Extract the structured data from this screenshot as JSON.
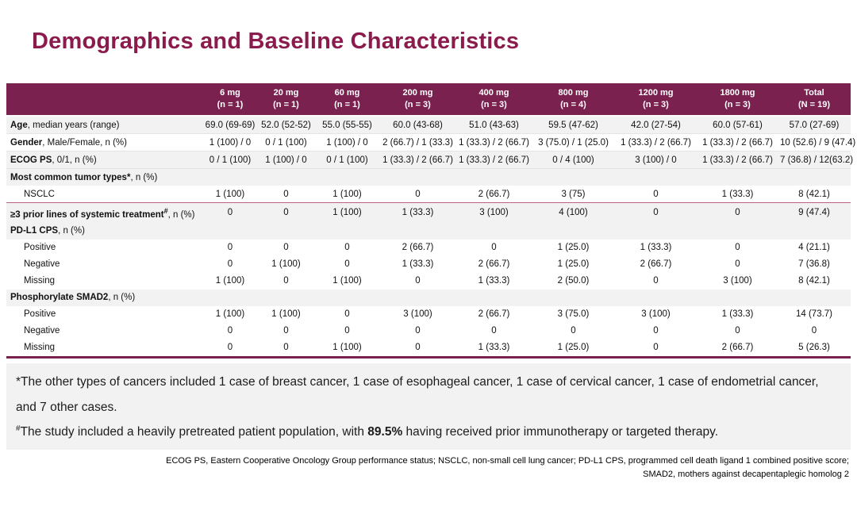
{
  "title": "Demographics and Baseline Characteristics",
  "colors": {
    "accent_maroon": "#7B2150",
    "title_maroon": "#8A1B4C",
    "row_shade": "#F2F2F2",
    "separator_pink": "#BE6186",
    "header_text": "#FFFFFF"
  },
  "table": {
    "columns": [
      {
        "dose": "6 mg",
        "n": "(n = 1)"
      },
      {
        "dose": "20 mg",
        "n": "(n = 1)"
      },
      {
        "dose": "60 mg",
        "n": "(n = 1)"
      },
      {
        "dose": "200 mg",
        "n": "(n = 3)"
      },
      {
        "dose": "400 mg",
        "n": "(n = 3)"
      },
      {
        "dose": "800 mg",
        "n": "(n = 4)"
      },
      {
        "dose": "1200 mg",
        "n": "(n = 3)"
      },
      {
        "dose": "1800 mg",
        "n": "(n = 3)"
      },
      {
        "dose": "Total",
        "n": "(N = 19)"
      }
    ],
    "rows": [
      {
        "type": "data",
        "shade": true,
        "rule": true,
        "label": [
          {
            "t": "Age",
            "b": true
          },
          {
            "t": ", median years (range)"
          }
        ],
        "values": [
          "69.0 (69-69)",
          "52.0 (52-52)",
          "55.0 (55-55)",
          "60.0 (43-68)",
          "51.0 (43-63)",
          "59.5 (47-62)",
          "42.0 (27-54)",
          "60.0 (57-61)",
          "57.0 (27-69)"
        ]
      },
      {
        "type": "data",
        "shade": false,
        "rule": true,
        "label": [
          {
            "t": "Gender",
            "b": true
          },
          {
            "t": ", Male/Female, n (%)"
          }
        ],
        "values": [
          "1 (100) / 0",
          "0 / 1 (100)",
          "1 (100) / 0",
          "2 (66.7) / 1 (33.3)",
          "1 (33.3) / 2 (66.7)",
          "3 (75.0) / 1 (25.0)",
          "1 (33.3) / 2 (66.7)",
          "1 (33.3) / 2 (66.7)",
          "10 (52.6) / 9 (47.4)"
        ]
      },
      {
        "type": "data",
        "shade": true,
        "rule": true,
        "label": [
          {
            "t": "ECOG PS",
            "b": true
          },
          {
            "t": ", 0/1, n (%)"
          }
        ],
        "values": [
          "0 / 1 (100)",
          "1 (100) / 0",
          "0 / 1 (100)",
          "1 (33.3) / 2 (66.7)",
          "1 (33.3) / 2 (66.7)",
          "0 / 4 (100)",
          "3 (100) / 0",
          "1 (33.3) / 2 (66.7)",
          "7 (36.8) / 12(63.2)"
        ]
      },
      {
        "type": "section",
        "shade": true,
        "label": [
          {
            "t": "Most common tumor types*",
            "b": true
          },
          {
            "t": ", n (%)"
          }
        ]
      },
      {
        "type": "data",
        "shade": false,
        "sep": true,
        "indent": true,
        "label": [
          {
            "t": "NSCLC"
          }
        ],
        "values": [
          "1 (100)",
          "0",
          "1 (100)",
          "0",
          "2 (66.7)",
          "3 (75)",
          "0",
          "1 (33.3)",
          "8 (42.1)"
        ]
      },
      {
        "type": "data",
        "shade": true,
        "label": [
          {
            "t": "≥3 prior lines of systemic treatment",
            "b": true
          },
          {
            "t": "#",
            "b": true,
            "sup": true
          },
          {
            "t": ", n (%)"
          }
        ],
        "values": [
          "0",
          "0",
          "1 (100)",
          "1 (33.3)",
          "3 (100)",
          "4 (100)",
          "0",
          "0",
          "9 (47.4)"
        ]
      },
      {
        "type": "section",
        "shade": true,
        "label": [
          {
            "t": "PD-L1 CPS",
            "b": true
          },
          {
            "t": ", n (%)"
          }
        ]
      },
      {
        "type": "data",
        "shade": false,
        "indent": true,
        "label": [
          {
            "t": "Positive"
          }
        ],
        "values": [
          "0",
          "0",
          "0",
          "2 (66.7)",
          "0",
          "1 (25.0)",
          "1 (33.3)",
          "0",
          "4 (21.1)"
        ]
      },
      {
        "type": "data",
        "shade": false,
        "indent": true,
        "label": [
          {
            "t": "Negative"
          }
        ],
        "values": [
          "0",
          "1 (100)",
          "0",
          "1 (33.3)",
          "2 (66.7)",
          "1 (25.0)",
          "2 (66.7)",
          "0",
          "7 (36.8)"
        ]
      },
      {
        "type": "data",
        "shade": false,
        "indent": true,
        "label": [
          {
            "t": "Missing"
          }
        ],
        "values": [
          "1 (100)",
          "0",
          "1 (100)",
          "0",
          "1 (33.3)",
          "2 (50.0)",
          "0",
          "3 (100)",
          "8 (42.1)"
        ]
      },
      {
        "type": "section",
        "shade": true,
        "label": [
          {
            "t": "Phosphorylate SMAD2",
            "b": true
          },
          {
            "t": ", n (%)"
          }
        ]
      },
      {
        "type": "data",
        "shade": false,
        "indent": true,
        "label": [
          {
            "t": "Positive"
          }
        ],
        "values": [
          "1 (100)",
          "1 (100)",
          "0",
          "3 (100)",
          "2 (66.7)",
          "3 (75.0)",
          "3 (100)",
          "1 (33.3)",
          "14 (73.7)"
        ]
      },
      {
        "type": "data",
        "shade": false,
        "indent": true,
        "label": [
          {
            "t": "Negative"
          }
        ],
        "values": [
          "0",
          "0",
          "0",
          "0",
          "0",
          "0",
          "0",
          "0",
          "0"
        ]
      },
      {
        "type": "data",
        "shade": false,
        "indent": true,
        "last": true,
        "label": [
          {
            "t": "Missing"
          }
        ],
        "values": [
          "0",
          "0",
          "1 (100)",
          "0",
          "1 (33.3)",
          "1 (25.0)",
          "0",
          "2 (66.7)",
          "5 (26.3)"
        ]
      }
    ]
  },
  "footnotes": {
    "note1_marker": "*",
    "note1_text": "The other types of cancers included 1 case of breast cancer, 1 case of esophageal cancer, 1 case of cervical cancer, 1 case of endometrial cancer, and 7 other cases.",
    "note2_marker": "#",
    "note2_pre": "The study included a heavily pretreated patient population, with ",
    "note2_bold": "89.5%",
    "note2_post": " having received prior immunotherapy or targeted therapy."
  },
  "abbreviations": {
    "line1": "ECOG PS, Eastern Cooperative Oncology Group performance status; NSCLC, non-small cell lung cancer; PD-L1 CPS, programmed cell death ligand 1 combined positive score;",
    "line2": "SMAD2, mothers against decapentaplegic homolog 2"
  }
}
